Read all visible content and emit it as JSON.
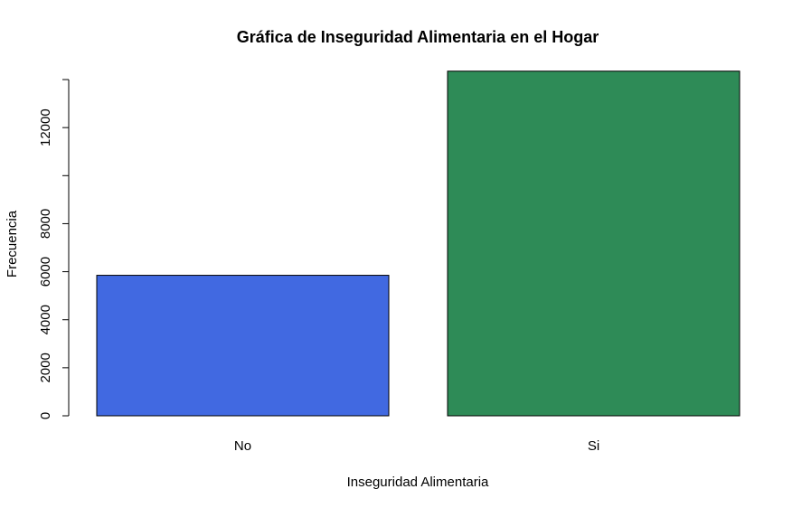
{
  "chart_data": {
    "type": "bar",
    "title": "Gráfica de Inseguridad Alimentaria en el Hogar",
    "xlabel": "Inseguridad Alimentaria",
    "ylabel": "Frecuencia",
    "categories": [
      "No",
      "Si"
    ],
    "values": [
      5850,
      14350
    ],
    "colors": [
      "#4169e1",
      "#2e8b57"
    ],
    "yticks": [
      0,
      2000,
      4000,
      6000,
      8000,
      10000,
      12000,
      14000
    ],
    "ytick_labels": [
      "0",
      "2000",
      "4000",
      "6000",
      "8000",
      "",
      "12000",
      ""
    ],
    "ylim": [
      0,
      14000
    ],
    "grid": false,
    "legend": "none"
  }
}
